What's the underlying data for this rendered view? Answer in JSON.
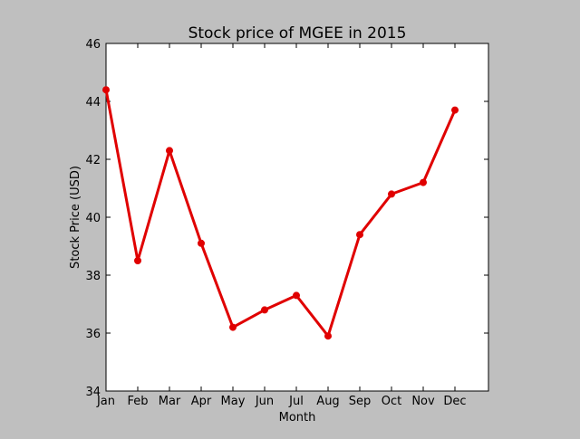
{
  "chart_data": {
    "type": "line",
    "title": "Stock price of MGEE in 2015",
    "xlabel": "Month",
    "ylabel": "Stock Price (USD)",
    "categories": [
      "Jan",
      "Feb",
      "Mar",
      "Apr",
      "May",
      "Jun",
      "Jul",
      "Aug",
      "Sep",
      "Oct",
      "Nov",
      "Dec"
    ],
    "series": [
      {
        "values": [
          44.4,
          38.5,
          42.3,
          39.1,
          36.2,
          36.8,
          37.3,
          35.9,
          39.4,
          40.8,
          41.2,
          43.7
        ]
      }
    ],
    "ylim": [
      34,
      46
    ],
    "yticks": [
      34,
      36,
      38,
      40,
      42,
      44,
      46
    ],
    "grid": false,
    "legend": "none",
    "line_color": "#e00000",
    "background_color": "#bfbfbf",
    "plot_background_color": "#ffffff"
  }
}
